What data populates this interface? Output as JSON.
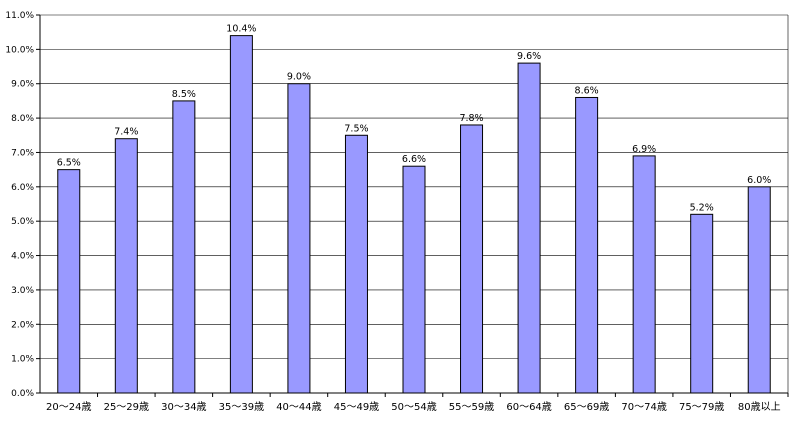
{
  "chart_data": {
    "type": "bar",
    "categories": [
      "20～24歳",
      "25～29歳",
      "30～34歳",
      "35～39歳",
      "40～44歳",
      "45～49歳",
      "50～54歳",
      "55～59歳",
      "60～64歳",
      "65～69歳",
      "70～74歳",
      "75～79歳",
      "80歳以上"
    ],
    "values": [
      6.5,
      7.4,
      8.5,
      10.4,
      9.0,
      7.5,
      6.6,
      7.8,
      9.6,
      8.6,
      6.9,
      5.2,
      6.0
    ],
    "data_labels": [
      "6.5%",
      "7.4%",
      "8.5%",
      "10.4%",
      "9.0%",
      "7.5%",
      "6.6%",
      "7.8%",
      "9.6%",
      "8.6%",
      "6.9%",
      "5.2%",
      "6.0%"
    ],
    "ylim": [
      0,
      11
    ],
    "yticks": [
      0,
      1,
      2,
      3,
      4,
      5,
      6,
      7,
      8,
      9,
      10,
      11
    ],
    "ytick_labels": [
      "0.0%",
      "1.0%",
      "2.0%",
      "3.0%",
      "4.0%",
      "5.0%",
      "6.0%",
      "7.0%",
      "8.0%",
      "9.0%",
      "10.0%",
      "11.0%"
    ],
    "grid": true,
    "legend": false,
    "title": "",
    "xlabel": "",
    "ylabel": "",
    "bar_color": "#9999FF",
    "bar_border_color": "#000000",
    "grid_color": "#000000"
  }
}
